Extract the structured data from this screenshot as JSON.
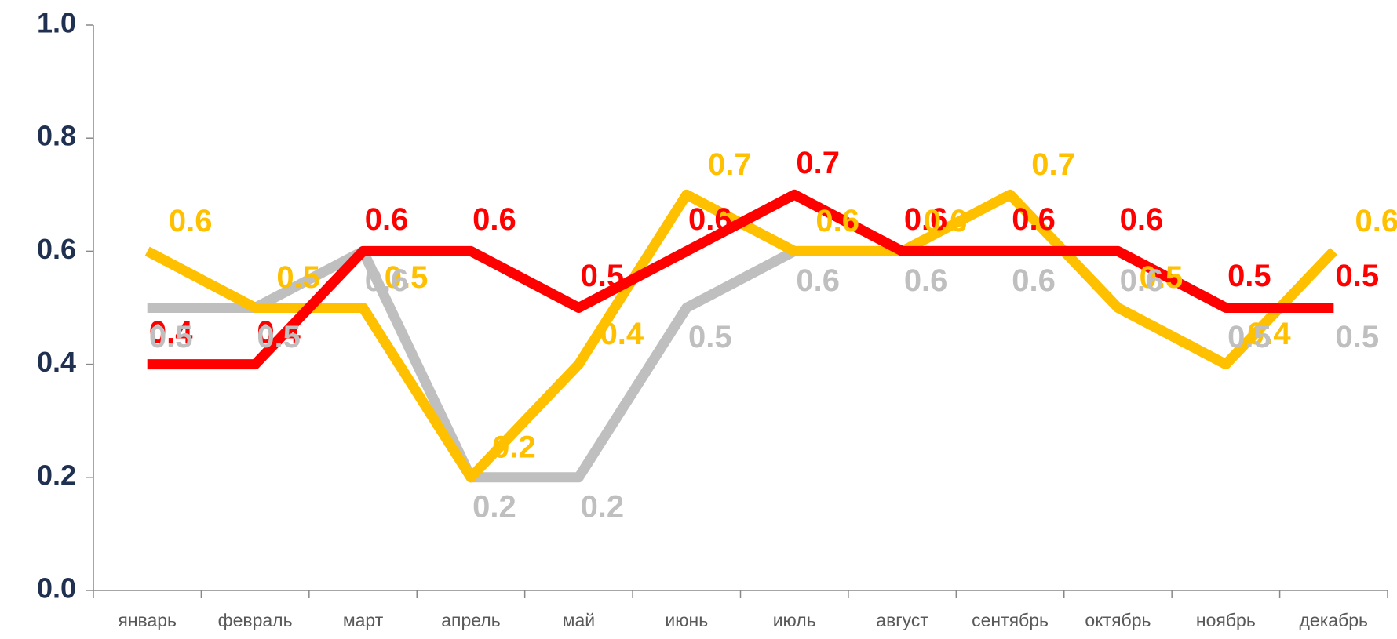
{
  "chart_data": {
    "type": "line",
    "categories": [
      "январь",
      "февраль",
      "март",
      "апрель",
      "май",
      "июнь",
      "июль",
      "август",
      "сентябрь",
      "октябрь",
      "ноябрь",
      "декабрь"
    ],
    "series": [
      {
        "color": "#ff0000",
        "values": [
          0.4,
          0.4,
          0.6,
          0.6,
          0.5,
          0.6,
          0.7,
          0.6,
          0.6,
          0.6,
          0.5,
          0.5
        ]
      },
      {
        "color": "#ffc000",
        "values": [
          0.6,
          0.5,
          0.5,
          0.2,
          0.4,
          0.7,
          0.6,
          0.6,
          0.7,
          0.5,
          0.4,
          0.6
        ]
      },
      {
        "color": "#bfbfbf",
        "values": [
          0.5,
          0.5,
          0.6,
          0.2,
          0.2,
          0.5,
          0.6,
          0.6,
          0.6,
          0.6,
          0.5,
          0.5
        ]
      }
    ],
    "ylim": [
      0,
      1
    ],
    "yticks": [
      {
        "value": 0,
        "label": "0.0"
      },
      0.2,
      0.4,
      0.6,
      0.8,
      {
        "value": 1,
        "label": "1.0"
      }
    ]
  }
}
